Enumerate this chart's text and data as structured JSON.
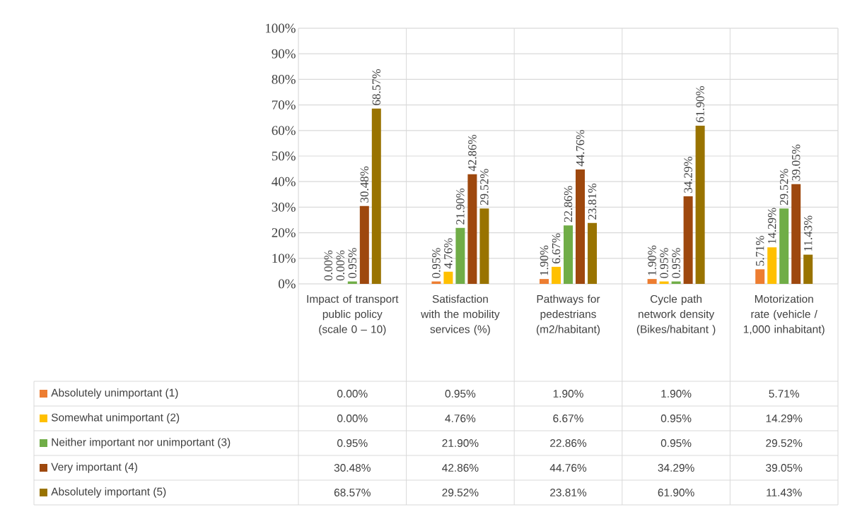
{
  "chart_data": {
    "type": "bar",
    "categories": [
      "Impact of transport public policy (scale 0 – 10)",
      "Satisfaction with the mobility services (%)",
      "Pathways for pedestrians (m2/habitant)",
      "Cycle path network density (Bikes/habitant )",
      "Motorization rate (vehicle / 1,000 inhabitant)"
    ],
    "series": [
      {
        "name": "Absolutely unimportant (1)",
        "color": "#ed7d31",
        "values": [
          0.0,
          0.95,
          1.9,
          1.9,
          5.71
        ],
        "value_labels": [
          "0.00%",
          "0.95%",
          "1.90%",
          "1.90%",
          "5.71%"
        ]
      },
      {
        "name": "Somewhat unimportant (2)",
        "color": "#ffc000",
        "values": [
          0.0,
          4.76,
          6.67,
          0.95,
          14.29
        ],
        "value_labels": [
          "0.00%",
          "4.76%",
          "6.67%",
          "0.95%",
          "14.29%"
        ]
      },
      {
        "name": "Neither important nor unimportant (3)",
        "color": "#70ad47",
        "values": [
          0.95,
          21.9,
          22.86,
          0.95,
          29.52
        ],
        "value_labels": [
          "0.95%",
          "21.90%",
          "22.86%",
          "0.95%",
          "29.52%"
        ]
      },
      {
        "name": "Very important (4)",
        "color": "#9e480e",
        "values": [
          30.48,
          42.86,
          44.76,
          34.29,
          39.05
        ],
        "value_labels": [
          "30.48%",
          "42.86%",
          "44.76%",
          "34.29%",
          "39.05%"
        ]
      },
      {
        "name": "Absolutely important (5)",
        "color": "#997300",
        "values": [
          68.57,
          29.52,
          23.81,
          61.9,
          11.43
        ],
        "value_labels": [
          "68.57%",
          "29.52%",
          "23.81%",
          "61.90%",
          "11.43%"
        ]
      }
    ],
    "ylim": [
      0,
      100
    ],
    "yticks": [
      {
        "value": 0,
        "label": "0%"
      },
      {
        "value": 10,
        "label": "10%"
      },
      {
        "value": 20,
        "label": "20%"
      },
      {
        "value": 30,
        "label": "30%"
      },
      {
        "value": 40,
        "label": "40%"
      },
      {
        "value": 50,
        "label": "50%"
      },
      {
        "value": 60,
        "label": "60%"
      },
      {
        "value": 70,
        "label": "70%"
      },
      {
        "value": 80,
        "label": "80%"
      },
      {
        "value": 90,
        "label": "90%"
      },
      {
        "value": 100,
        "label": "100%"
      }
    ],
    "grid": "y",
    "legend": "bottom"
  }
}
